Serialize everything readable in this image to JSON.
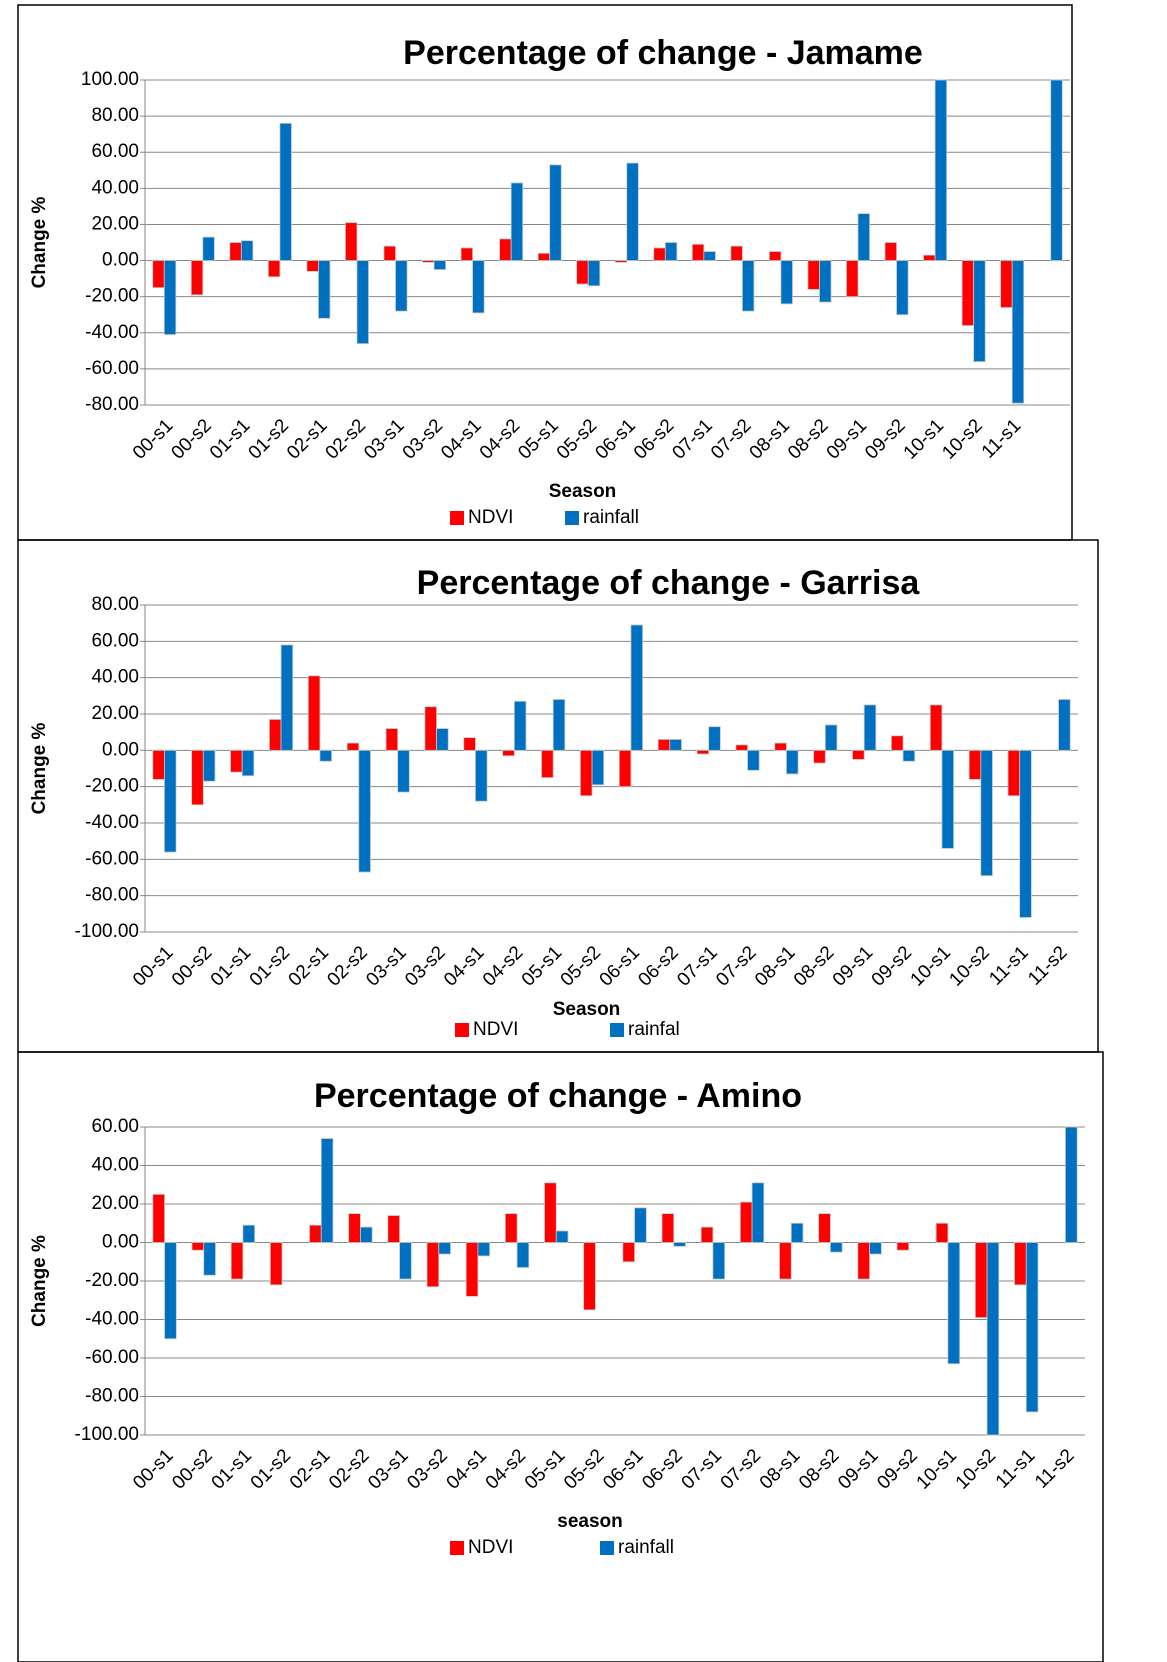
{
  "chart_data": [
    {
      "type": "bar",
      "title": "Percentage of change - Jamame",
      "x_label": "Season",
      "y_label": "Change %",
      "categories": [
        "00-s1",
        "00-s2",
        "01-s1",
        "01-s2",
        "02-s1",
        "02-s2",
        "03-s1",
        "03-s2",
        "04-s1",
        "04-s2",
        "05-s1",
        "05-s2",
        "06-s1",
        "06-s2",
        "07-s1",
        "07-s2",
        "08-s1",
        "08-s2",
        "09-s1",
        "09-s2",
        "10-s1",
        "10-s2",
        "11-s1",
        null
      ],
      "series": [
        {
          "name": "NDVI",
          "color": "#ff0000",
          "values": [
            -15,
            -19,
            10,
            -9,
            -6,
            21,
            8,
            -1,
            7,
            12,
            4,
            -13,
            -1,
            7,
            9,
            8,
            5,
            -16,
            -20,
            10,
            3,
            -36,
            -26,
            0
          ]
        },
        {
          "name": "rainfall",
          "color": "#0070c0",
          "values": [
            -41,
            13,
            11,
            76,
            -32,
            -46,
            -28,
            -5,
            -29,
            43,
            53,
            -14,
            54,
            10,
            5,
            -28,
            -24,
            -23,
            26,
            -30,
            100,
            -56,
            -79,
            100
          ]
        }
      ],
      "ylim": [
        -80,
        100
      ],
      "yticks": [
        {
          "value": -80,
          "label": "-80.00"
        },
        {
          "value": -60,
          "label": "-60.00"
        },
        {
          "value": -40,
          "label": "-40.00"
        },
        {
          "value": -20,
          "label": "-20.00"
        },
        {
          "value": 0,
          "label": "0.00"
        },
        {
          "value": 20,
          "label": "20.00"
        },
        {
          "value": 40,
          "label": "40.00"
        },
        {
          "value": 60,
          "label": "60.00"
        },
        {
          "value": 80,
          "label": "80.00"
        },
        {
          "value": 100,
          "label": "100.00"
        }
      ],
      "grid": true,
      "legend": "bottom"
    },
    {
      "type": "bar",
      "title": "Percentage of change  - Garrisa",
      "x_label": "Season",
      "y_label": "Change %",
      "categories": [
        "00-s1",
        "00-s2",
        "01-s1",
        "01-s2",
        "02-s1",
        "02-s2",
        "03-s1",
        "03-s2",
        "04-s1",
        "04-s2",
        "05-s1",
        "05-s2",
        "06-s1",
        "06-s2",
        "07-s1",
        "07-s2",
        "08-s1",
        "08-s2",
        "09-s1",
        "09-s2",
        "10-s1",
        "10-s2",
        "11-s1",
        "11-s2"
      ],
      "series": [
        {
          "name": "NDVI",
          "color": "#ff0000",
          "values": [
            -16,
            -30,
            -12,
            17,
            41,
            4,
            12,
            24,
            7,
            -3,
            -15,
            -25,
            -20,
            6,
            -2,
            3,
            4,
            -7,
            -5,
            8,
            25,
            -16,
            -25,
            0
          ]
        },
        {
          "name": "rainfal",
          "color": "#0070c0",
          "values": [
            -56,
            -17,
            -14,
            58,
            -6,
            -67,
            -23,
            12,
            -28,
            27,
            28,
            -19,
            69,
            6,
            13,
            -11,
            -13,
            14,
            25,
            -6,
            -54,
            -69,
            -92,
            28
          ]
        }
      ],
      "ylim": [
        -100,
        80
      ],
      "yticks": [
        {
          "value": -100,
          "label": "-100.00"
        },
        {
          "value": -80,
          "label": "-80.00"
        },
        {
          "value": -60,
          "label": "-60.00"
        },
        {
          "value": -40,
          "label": "-40.00"
        },
        {
          "value": -20,
          "label": "-20.00"
        },
        {
          "value": 0,
          "label": "0.00"
        },
        {
          "value": 20,
          "label": "20.00"
        },
        {
          "value": 40,
          "label": "40.00"
        },
        {
          "value": 60,
          "label": "60.00"
        },
        {
          "value": 80,
          "label": "80.00"
        }
      ],
      "grid": true,
      "legend": "bottom"
    },
    {
      "type": "bar",
      "title": "Percentage of change  - Amino",
      "x_label": "season",
      "y_label": "Change %",
      "categories": [
        "00-s1",
        "00-s2",
        "01-s1",
        "01-s2",
        "02-s1",
        "02-s2",
        "03-s1",
        "03-s2",
        "04-s1",
        "04-s2",
        "05-s1",
        "05-s2",
        "06-s1",
        "06-s2",
        "07-s1",
        "07-s2",
        "08-s1",
        "08-s2",
        "09-s1",
        "09-s2",
        "10-s1",
        "10-s2",
        "11-s1",
        "11-s2"
      ],
      "series": [
        {
          "name": "NDVI",
          "color": "#ff0000",
          "values": [
            25,
            -4,
            -19,
            -22,
            9,
            15,
            14,
            -23,
            -28,
            15,
            31,
            -35,
            -10,
            15,
            8,
            21,
            -19,
            15,
            -19,
            -4,
            10,
            -39,
            -22,
            0
          ]
        },
        {
          "name": "rainfall",
          "color": "#0070c0",
          "values": [
            -50,
            -17,
            9,
            0,
            54,
            8,
            -19,
            -6,
            -7,
            -13,
            6,
            0,
            18,
            -2,
            -19,
            31,
            10,
            -5,
            -6,
            0,
            -63,
            -100,
            -88,
            60
          ]
        }
      ],
      "ylim": [
        -100,
        60
      ],
      "yticks": [
        {
          "value": -100,
          "label": "-100.00"
        },
        {
          "value": -80,
          "label": "-80.00"
        },
        {
          "value": -60,
          "label": "-60.00"
        },
        {
          "value": -40,
          "label": "-40.00"
        },
        {
          "value": -20,
          "label": "-20.00"
        },
        {
          "value": 0,
          "label": "0.00"
        },
        {
          "value": 20,
          "label": "20.00"
        },
        {
          "value": 40,
          "label": "40.00"
        },
        {
          "value": 60,
          "label": "60.00"
        }
      ],
      "grid": true,
      "legend": "bottom"
    }
  ]
}
